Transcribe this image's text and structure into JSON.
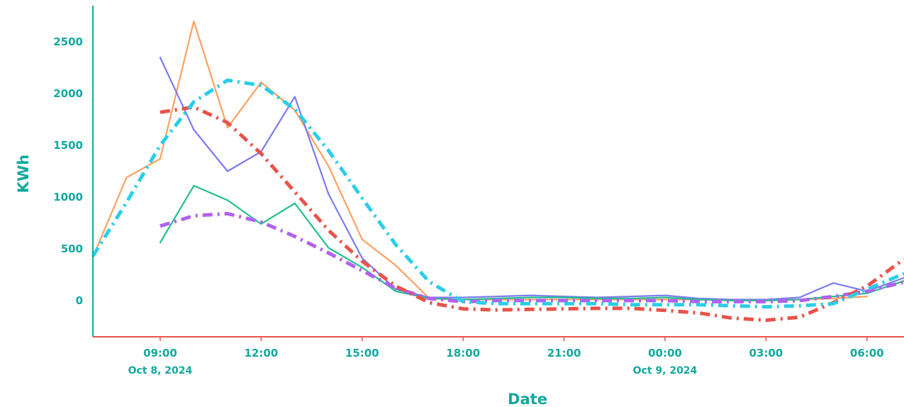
{
  "colors": {
    "text": "#13a89e",
    "y_axis_line": "#13a89e",
    "x_axis_line": "#e8534a"
  },
  "chart_data": {
    "type": "line",
    "title": "",
    "xlabel": "Date",
    "ylabel": "KWh",
    "ylim": [
      -350,
      2850
    ],
    "xlim_hours": [
      7,
      31.1
    ],
    "x_unit": "hour (from 00:00 Oct 8, 2024)",
    "grid": false,
    "legend": "none",
    "y_ticks": [
      {
        "value": 0,
        "label": "0"
      },
      {
        "value": 500,
        "label": "500"
      },
      {
        "value": 1000,
        "label": "1000"
      },
      {
        "value": 1500,
        "label": "1500"
      },
      {
        "value": 2000,
        "label": "2000"
      },
      {
        "value": 2500,
        "label": "2500"
      }
    ],
    "x_ticks": [
      {
        "value": 9,
        "label": "09:00",
        "date": "Oct 8, 2024"
      },
      {
        "value": 12,
        "label": "12:00",
        "date": ""
      },
      {
        "value": 15,
        "label": "15:00",
        "date": ""
      },
      {
        "value": 18,
        "label": "18:00",
        "date": ""
      },
      {
        "value": 21,
        "label": "21:00",
        "date": ""
      },
      {
        "value": 24,
        "label": "00:00",
        "date": "Oct 9, 2024"
      },
      {
        "value": 27,
        "label": "03:00",
        "date": ""
      },
      {
        "value": 30,
        "label": "06:00",
        "date": ""
      }
    ],
    "series": [
      {
        "color": "#ffa060",
        "width": 2.2,
        "dash": "",
        "x": [
          7,
          8,
          9,
          10,
          11,
          12,
          13,
          14,
          15,
          16,
          17,
          18,
          19,
          20,
          21,
          22,
          23,
          24,
          25,
          26,
          27,
          28,
          29,
          30
        ],
        "y": [
          420,
          1190,
          1370,
          2700,
          1670,
          2110,
          1840,
          1300,
          590,
          340,
          20,
          10,
          10,
          10,
          10,
          10,
          10,
          10,
          10,
          0,
          0,
          10,
          20,
          40
        ]
      },
      {
        "color": "#7b7bf0",
        "width": 2.2,
        "dash": "",
        "x": [
          9,
          10,
          11,
          12,
          13,
          14,
          15,
          16,
          17,
          18,
          19,
          20,
          21,
          22,
          23,
          24,
          25,
          26,
          27,
          28,
          29,
          30,
          31.1
        ],
        "y": [
          2350,
          1650,
          1250,
          1440,
          1970,
          1030,
          410,
          110,
          30,
          30,
          40,
          50,
          40,
          30,
          40,
          50,
          20,
          10,
          10,
          30,
          170,
          90,
          220
        ]
      },
      {
        "color": "#22c08a",
        "width": 2.2,
        "dash": "",
        "x": [
          9,
          10,
          11,
          12,
          13,
          14,
          15,
          16,
          17,
          18,
          19,
          20,
          21,
          22,
          23,
          24,
          25,
          26,
          27,
          28,
          29,
          30,
          31.1
        ],
        "y": [
          560,
          1110,
          970,
          740,
          940,
          510,
          320,
          90,
          20,
          10,
          20,
          30,
          30,
          20,
          20,
          30,
          10,
          0,
          0,
          10,
          40,
          70,
          190
        ]
      },
      {
        "color": "#b062f0",
        "width": 5,
        "dash": "14 7 3 7",
        "x": [
          9,
          10,
          11,
          12,
          13,
          14,
          15,
          16,
          17,
          18,
          19,
          20,
          21,
          22,
          23,
          24,
          25,
          26,
          27,
          28,
          29,
          30,
          31.1
        ],
        "y": [
          720,
          820,
          840,
          760,
          620,
          460,
          290,
          120,
          20,
          -10,
          0,
          0,
          0,
          0,
          0,
          0,
          -10,
          -10,
          -10,
          0,
          40,
          90,
          180
        ]
      },
      {
        "color": "#e8534a",
        "width": 5,
        "dash": "14 7 3 7",
        "x": [
          9,
          10,
          11,
          12,
          13,
          14,
          15,
          16,
          17,
          18,
          19,
          20,
          21,
          22,
          23,
          24,
          25,
          26,
          27,
          28,
          29,
          30,
          31.1
        ],
        "y": [
          1820,
          1870,
          1720,
          1420,
          1050,
          680,
          380,
          140,
          -20,
          -80,
          -90,
          -85,
          -80,
          -75,
          -75,
          -95,
          -120,
          -170,
          -190,
          -160,
          -20,
          140,
          400
        ]
      },
      {
        "color": "#2bcde8",
        "width": 5,
        "dash": "14 7 3 7",
        "x": [
          7,
          8,
          9,
          10,
          11,
          12,
          13,
          14,
          15,
          16,
          17,
          18,
          19,
          20,
          21,
          22,
          23,
          24,
          25,
          26,
          27,
          28,
          29,
          30,
          31.1
        ],
        "y": [
          430,
          950,
          1500,
          1920,
          2130,
          2080,
          1850,
          1450,
          990,
          540,
          180,
          -10,
          -30,
          -30,
          -30,
          -30,
          -40,
          -40,
          -40,
          -50,
          -60,
          -50,
          -30,
          110,
          260
        ]
      }
    ]
  }
}
